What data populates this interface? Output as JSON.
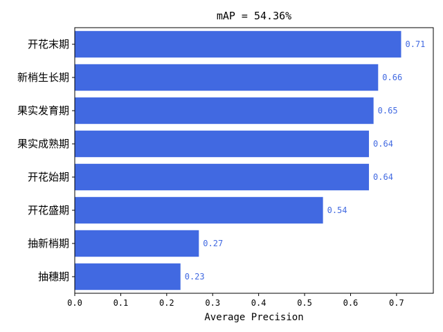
{
  "chart_data": {
    "type": "bar",
    "orientation": "horizontal",
    "title": "mAP = 54.36%",
    "xlabel": "Average Precision",
    "ylabel": "",
    "xlim": [
      0,
      0.78
    ],
    "xticks": [
      "0.0",
      "0.1",
      "0.2",
      "0.3",
      "0.4",
      "0.5",
      "0.6",
      "0.7"
    ],
    "grid": false,
    "bar_color": "#4169e1",
    "label_color": "#4169e1",
    "categories": [
      "开花末期",
      "新梢生长期",
      "果实发育期",
      "果实成熟期",
      "开花始期",
      "开花盛期",
      "抽新梢期",
      "抽穗期"
    ],
    "values": [
      0.71,
      0.66,
      0.65,
      0.64,
      0.64,
      0.54,
      0.27,
      0.23
    ],
    "value_labels": [
      "0.71",
      "0.66",
      "0.65",
      "0.64",
      "0.64",
      "0.54",
      "0.27",
      "0.23"
    ]
  }
}
